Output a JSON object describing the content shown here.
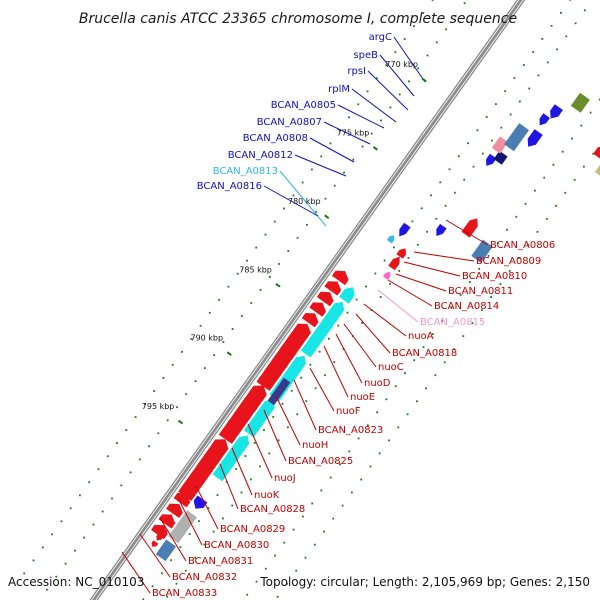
{
  "title": "Brucella canis ATCC 23365 chromosome I, complete sequence",
  "footer": {
    "accession": "Accession: NC_010103",
    "summary": "Topology: circular; Length: 2,105,969 bp; Genes: 2,150"
  },
  "colors": {
    "backbone": "#8c8c8c",
    "forward": "#e8141b",
    "reverse": "#1f16e6",
    "cyan": "#18e6e6",
    "steel": "#4a7db3",
    "label_red": "#c00000",
    "label_blue": "#1010c0",
    "label_cyan": "#33b5e5",
    "label_pink": "#ee99cc",
    "tick": "#1a7a1a"
  },
  "scale": [
    {
      "kbp": 770,
      "label": "770 kbp"
    },
    {
      "kbp": 775,
      "label": "775 kbp"
    },
    {
      "kbp": 780,
      "label": "780 kbp"
    },
    {
      "kbp": 785,
      "label": "785 kbp"
    },
    {
      "kbp": 790,
      "label": "790 kbp"
    },
    {
      "kbp": 795,
      "label": "795 kbp"
    }
  ],
  "labels_left": [
    {
      "text": "argC",
      "color": "blue"
    },
    {
      "text": "speB",
      "color": "blue"
    },
    {
      "text": "rpsI",
      "color": "blue"
    },
    {
      "text": "rplM",
      "color": "blue"
    },
    {
      "text": "BCAN_A0805",
      "color": "blue"
    },
    {
      "text": "BCAN_A0807",
      "color": "blue"
    },
    {
      "text": "BCAN_A0808",
      "color": "blue"
    },
    {
      "text": "BCAN_A0812",
      "color": "blue"
    },
    {
      "text": "BCAN_A0813",
      "color": "cyan"
    },
    {
      "text": "BCAN_A0816",
      "color": "blue"
    }
  ],
  "labels_right": [
    {
      "text": "BCAN_A0806",
      "color": "red"
    },
    {
      "text": "BCAN_A0809",
      "color": "red"
    },
    {
      "text": "BCAN_A0810",
      "color": "red"
    },
    {
      "text": "BCAN_A0811",
      "color": "red"
    },
    {
      "text": "BCAN_A0814",
      "color": "red"
    },
    {
      "text": "BCAN_A0815",
      "color": "pink"
    },
    {
      "text": "nuoA",
      "color": "red"
    },
    {
      "text": "BCAN_A0818",
      "color": "red"
    },
    {
      "text": "nuoC",
      "color": "red"
    },
    {
      "text": "nuoD",
      "color": "red"
    },
    {
      "text": "nuoE",
      "color": "red"
    },
    {
      "text": "nuoF",
      "color": "red"
    },
    {
      "text": "BCAN_A0823",
      "color": "red"
    },
    {
      "text": "nuoH",
      "color": "red"
    },
    {
      "text": "BCAN_A0825",
      "color": "red"
    },
    {
      "text": "nuoJ",
      "color": "red"
    },
    {
      "text": "nuoK",
      "color": "red"
    },
    {
      "text": "BCAN_A0828",
      "color": "red"
    },
    {
      "text": "BCAN_A0829",
      "color": "red"
    },
    {
      "text": "BCAN_A0830",
      "color": "red"
    },
    {
      "text": "BCAN_A0831",
      "color": "red"
    },
    {
      "text": "BCAN_A0832",
      "color": "red"
    },
    {
      "text": "BCAN_A0833",
      "color": "red"
    }
  ]
}
